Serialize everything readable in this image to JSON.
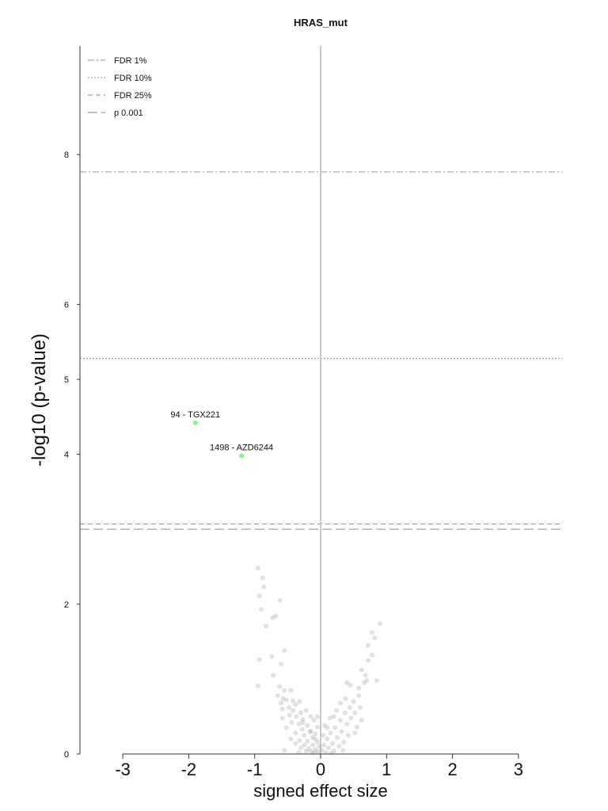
{
  "chart_data": {
    "type": "scatter",
    "title": "HRAS_mut",
    "xlabel": "signed effect size",
    "ylabel": "-log10 (p-value)",
    "xlim": [
      -3.6,
      3.65
    ],
    "ylim": [
      0,
      9.75
    ],
    "x_ticks": [
      "-3",
      "-2",
      "-1",
      "0",
      "1",
      "2",
      "3"
    ],
    "x_tick_values": [
      -3,
      -2,
      -1,
      0,
      1,
      2,
      3
    ],
    "y_ticks": [
      "0",
      "2",
      "4",
      "5",
      "6",
      "8"
    ],
    "y_tick_values": [
      0,
      2,
      4,
      5,
      6,
      8
    ],
    "vertical_line_x": 0,
    "legend_position": "top-left",
    "thresholds": [
      {
        "label": "FDR 1%",
        "y": 7.77,
        "style": "dash-dot",
        "color": "#a0a0a0"
      },
      {
        "label": "FDR 10%",
        "y": 5.28,
        "style": "dotted",
        "color": "#a8a8a8"
      },
      {
        "label": "FDR 25%",
        "y": 3.07,
        "style": "dashed",
        "color": "#9a9a9a"
      },
      {
        "label": "p 0.001",
        "y": 3.0,
        "style": "long-dashed",
        "color": "#9a9a9a"
      }
    ],
    "highlighted_points": [
      {
        "x": -1.9,
        "y": 4.42,
        "label": "94 - TGX221",
        "color": "#90ee90"
      },
      {
        "x": -1.2,
        "y": 3.98,
        "label": "1498 - AZD6244",
        "color": "#90ee90"
      }
    ],
    "background_points": [
      {
        "x": -0.95,
        "y": 2.48
      },
      {
        "x": -0.88,
        "y": 2.35
      },
      {
        "x": -0.86,
        "y": 2.23
      },
      {
        "x": -0.93,
        "y": 2.11
      },
      {
        "x": -0.62,
        "y": 2.05
      },
      {
        "x": -0.9,
        "y": 1.93
      },
      {
        "x": -0.73,
        "y": 1.82
      },
      {
        "x": -0.68,
        "y": 1.84
      },
      {
        "x": -0.83,
        "y": 1.71
      },
      {
        "x": -0.55,
        "y": 1.38
      },
      {
        "x": -0.74,
        "y": 1.3
      },
      {
        "x": -0.93,
        "y": 1.26
      },
      {
        "x": -0.6,
        "y": 1.2
      },
      {
        "x": -0.72,
        "y": 1.05
      },
      {
        "x": -0.95,
        "y": 0.91
      },
      {
        "x": -0.62,
        "y": 0.9
      },
      {
        "x": -0.55,
        "y": 0.85
      },
      {
        "x": -0.45,
        "y": 0.85
      },
      {
        "x": -0.65,
        "y": 0.78
      },
      {
        "x": -0.57,
        "y": 0.74
      },
      {
        "x": -0.52,
        "y": 0.72
      },
      {
        "x": -0.42,
        "y": 0.71
      },
      {
        "x": -0.32,
        "y": 0.7
      },
      {
        "x": -0.6,
        "y": 0.68
      },
      {
        "x": -0.38,
        "y": 0.66
      },
      {
        "x": -0.48,
        "y": 0.62
      },
      {
        "x": -0.58,
        "y": 0.6
      },
      {
        "x": -0.42,
        "y": 0.58
      },
      {
        "x": -0.22,
        "y": 0.58
      },
      {
        "x": -0.3,
        "y": 0.55
      },
      {
        "x": -0.47,
        "y": 0.52
      },
      {
        "x": -0.37,
        "y": 0.5
      },
      {
        "x": -0.15,
        "y": 0.5
      },
      {
        "x": -0.05,
        "y": 0.5
      },
      {
        "x": -0.58,
        "y": 0.48
      },
      {
        "x": -0.27,
        "y": 0.46
      },
      {
        "x": -0.1,
        "y": 0.45
      },
      {
        "x": -0.44,
        "y": 0.42
      },
      {
        "x": -0.33,
        "y": 0.4
      },
      {
        "x": -0.2,
        "y": 0.38
      },
      {
        "x": -0.05,
        "y": 0.36
      },
      {
        "x": -0.52,
        "y": 0.35
      },
      {
        "x": -0.28,
        "y": 0.33
      },
      {
        "x": -0.15,
        "y": 0.3
      },
      {
        "x": -0.38,
        "y": 0.28
      },
      {
        "x": -0.08,
        "y": 0.27
      },
      {
        "x": -0.25,
        "y": 0.25
      },
      {
        "x": -0.12,
        "y": 0.22
      },
      {
        "x": -0.45,
        "y": 0.2
      },
      {
        "x": -0.32,
        "y": 0.18
      },
      {
        "x": -0.2,
        "y": 0.17
      },
      {
        "x": -0.05,
        "y": 0.16
      },
      {
        "x": -0.38,
        "y": 0.14
      },
      {
        "x": -0.25,
        "y": 0.12
      },
      {
        "x": -0.12,
        "y": 0.12
      },
      {
        "x": -0.02,
        "y": 0.1
      },
      {
        "x": -0.3,
        "y": 0.08
      },
      {
        "x": -0.18,
        "y": 0.07
      },
      {
        "x": -0.08,
        "y": 0.06
      },
      {
        "x": -0.55,
        "y": 0.05
      },
      {
        "x": -0.22,
        "y": 0.04
      },
      {
        "x": -0.14,
        "y": 0.03
      },
      {
        "x": -0.04,
        "y": 0.03
      },
      {
        "x": -0.33,
        "y": 0.02
      },
      {
        "x": -0.1,
        "y": 0.01
      },
      {
        "x": -0.16,
        "y": 0.3
      },
      {
        "x": -0.27,
        "y": 0.42
      },
      {
        "x": -0.08,
        "y": 0.2
      },
      {
        "x": 0.02,
        "y": 0.05
      },
      {
        "x": 0.05,
        "y": 0.12
      },
      {
        "x": 0.08,
        "y": 0.02
      },
      {
        "x": 0.1,
        "y": 0.2
      },
      {
        "x": 0.12,
        "y": 0.08
      },
      {
        "x": 0.15,
        "y": 0.28
      },
      {
        "x": 0.18,
        "y": 0.14
      },
      {
        "x": 0.2,
        "y": 0.04
      },
      {
        "x": 0.22,
        "y": 0.35
      },
      {
        "x": 0.25,
        "y": 0.22
      },
      {
        "x": 0.28,
        "y": 0.1
      },
      {
        "x": 0.3,
        "y": 0.45
      },
      {
        "x": 0.32,
        "y": 0.3
      },
      {
        "x": 0.35,
        "y": 0.16
      },
      {
        "x": 0.37,
        "y": 0.55
      },
      {
        "x": 0.4,
        "y": 0.4
      },
      {
        "x": 0.42,
        "y": 0.25
      },
      {
        "x": 0.44,
        "y": 0.62
      },
      {
        "x": 0.46,
        "y": 0.48
      },
      {
        "x": 0.5,
        "y": 0.7
      },
      {
        "x": 0.52,
        "y": 0.55
      },
      {
        "x": 0.55,
        "y": 0.36
      },
      {
        "x": 0.58,
        "y": 0.78
      },
      {
        "x": 0.6,
        "y": 0.62
      },
      {
        "x": 0.62,
        "y": 0.45
      },
      {
        "x": 0.38,
        "y": 0.74
      },
      {
        "x": 0.3,
        "y": 0.68
      },
      {
        "x": 0.24,
        "y": 0.58
      },
      {
        "x": 0.14,
        "y": 0.48
      },
      {
        "x": 0.06,
        "y": 0.38
      },
      {
        "x": 0.66,
        "y": 0.95
      },
      {
        "x": 0.7,
        "y": 0.98
      },
      {
        "x": 0.4,
        "y": 0.95
      },
      {
        "x": 0.45,
        "y": 0.92
      },
      {
        "x": 0.58,
        "y": 0.88
      },
      {
        "x": 0.68,
        "y": 1.05
      },
      {
        "x": 0.62,
        "y": 1.12
      },
      {
        "x": 0.72,
        "y": 1.25
      },
      {
        "x": 0.78,
        "y": 1.32
      },
      {
        "x": 0.72,
        "y": 1.45
      },
      {
        "x": 0.82,
        "y": 1.55
      },
      {
        "x": 0.78,
        "y": 1.62
      },
      {
        "x": 0.9,
        "y": 1.74
      },
      {
        "x": 0.85,
        "y": 0.98
      },
      {
        "x": 0.52,
        "y": 0.28
      },
      {
        "x": 0.2,
        "y": 0.5
      },
      {
        "x": 0.1,
        "y": 0.35
      },
      {
        "x": 0.34,
        "y": 0.05
      },
      {
        "x": 0.04,
        "y": 0.25
      },
      {
        "x": 0.16,
        "y": 0.01
      }
    ]
  }
}
